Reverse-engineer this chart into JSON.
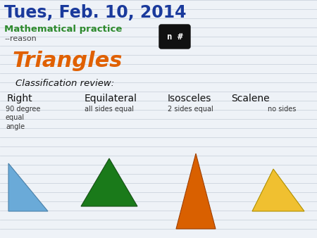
{
  "title": "Tues, Feb. 10, 2014",
  "subtitle": "Mathematical practice",
  "subtitle2": "--reason",
  "main_heading": "Triangles",
  "classification_label": "Classification review:",
  "col_labels": [
    "Right",
    "Equilateral",
    "Isosceles",
    "Scalene"
  ],
  "col_descriptions": [
    "90 degree\nequal\nangle",
    "all sides equal",
    "2 sides equal",
    "no sides"
  ],
  "badge_text": "n #",
  "title_color": "#1a3a9c",
  "subtitle_color": "#2d8a2d",
  "subtitle2_color": "#444444",
  "main_heading_color": "#e06000",
  "col_label_color": "#111111",
  "desc_color": "#333333",
  "badge_bg": "#111111",
  "badge_fg": "#ffffff",
  "bg_color": "#eef2f7",
  "line_color": "#c5cdd8",
  "tri_colors": [
    "#6aaad8",
    "#1a7a1a",
    "#d96000",
    "#f0c030"
  ],
  "tri_edge_colors": [
    "#4a80a8",
    "#155015",
    "#a04000",
    "#b09000"
  ]
}
